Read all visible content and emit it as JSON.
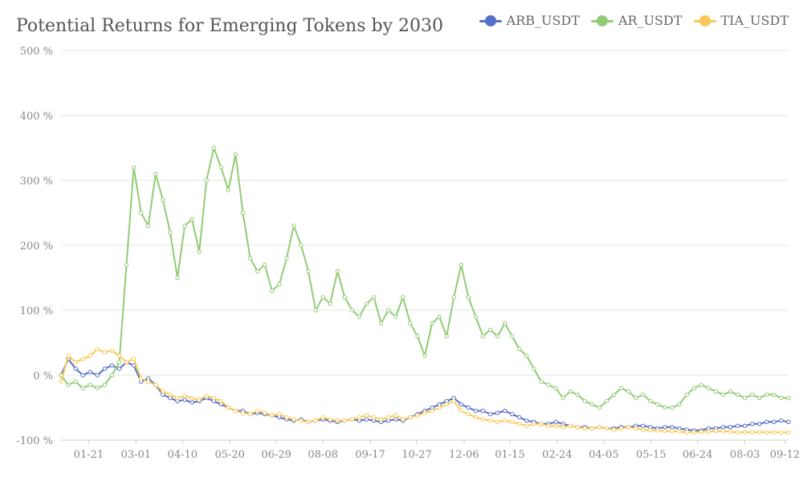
{
  "chart_data": {
    "type": "line",
    "title": "Potential Returns for Emerging Tokens by 2030",
    "xlabel": "",
    "ylabel": "",
    "ylim": [
      -100,
      500
    ],
    "y_ticks": [
      -100,
      0,
      100,
      200,
      300,
      400,
      500
    ],
    "y_tick_suffix": " %",
    "x_tick_labels": [
      "01-21",
      "03-01",
      "04-10",
      "05-20",
      "06-29",
      "08-08",
      "09-17",
      "10-27",
      "12-06",
      "01-15",
      "02-24",
      "04-05",
      "05-15",
      "06-24",
      "08-03",
      "09-12"
    ],
    "x_index_range": [
      0,
      100
    ],
    "x_tick_positions": [
      3.8,
      10.3,
      16.7,
      23.2,
      29.6,
      36.0,
      42.5,
      48.9,
      55.4,
      61.7,
      68.2,
      74.6,
      81.1,
      87.5,
      94.0,
      99.5
    ],
    "legend_position": "top-right",
    "grid": {
      "y": true,
      "x": false
    },
    "series": [
      {
        "name": "ARB_USDT",
        "color": "#5470c6",
        "x": [
          0,
          1,
          2,
          3,
          4,
          5,
          6,
          7,
          8,
          9,
          10,
          11,
          12,
          13,
          14,
          15,
          16,
          17,
          18,
          19,
          20,
          21,
          22,
          23,
          24,
          25,
          26,
          27,
          28,
          29,
          30,
          31,
          32,
          33,
          34,
          35,
          36,
          37,
          38,
          39,
          40,
          41,
          42,
          43,
          44,
          45,
          46,
          47,
          48,
          49,
          50,
          51,
          52,
          53,
          54,
          55,
          56,
          57,
          58,
          59,
          60,
          61,
          62,
          63,
          64,
          65,
          66,
          67,
          68,
          69,
          70,
          71,
          72,
          73,
          74,
          75,
          76,
          77,
          78,
          79,
          80,
          81,
          82,
          83,
          84,
          85,
          86,
          87,
          88,
          89,
          90,
          91,
          92,
          93,
          94,
          95,
          96,
          97,
          98,
          99,
          100
        ],
        "values": [
          0,
          25,
          10,
          0,
          5,
          0,
          10,
          15,
          10,
          20,
          15,
          -10,
          -5,
          -15,
          -30,
          -35,
          -40,
          -38,
          -42,
          -40,
          -35,
          -40,
          -45,
          -50,
          -55,
          -55,
          -60,
          -58,
          -60,
          -62,
          -65,
          -68,
          -70,
          -68,
          -72,
          -70,
          -68,
          -70,
          -72,
          -70,
          -68,
          -70,
          -68,
          -70,
          -72,
          -70,
          -68,
          -70,
          -65,
          -60,
          -55,
          -50,
          -45,
          -40,
          -35,
          -45,
          -50,
          -55,
          -55,
          -60,
          -58,
          -55,
          -60,
          -65,
          -70,
          -72,
          -75,
          -75,
          -72,
          -75,
          -78,
          -80,
          -80,
          -82,
          -80,
          -82,
          -82,
          -80,
          -80,
          -78,
          -78,
          -80,
          -82,
          -80,
          -80,
          -82,
          -84,
          -85,
          -85,
          -82,
          -82,
          -80,
          -80,
          -78,
          -78,
          -75,
          -75,
          -72,
          -72,
          -70,
          -72
        ]
      },
      {
        "name": "AR_USDT",
        "color": "#91cc75",
        "x": [
          0,
          1,
          2,
          3,
          4,
          5,
          6,
          7,
          8,
          9,
          10,
          11,
          12,
          13,
          14,
          15,
          16,
          17,
          18,
          19,
          20,
          21,
          22,
          23,
          24,
          25,
          26,
          27,
          28,
          29,
          30,
          31,
          32,
          33,
          34,
          35,
          36,
          37,
          38,
          39,
          40,
          41,
          42,
          43,
          44,
          45,
          46,
          47,
          48,
          49,
          50,
          51,
          52,
          53,
          54,
          55,
          56,
          57,
          58,
          59,
          60,
          61,
          62,
          63,
          64,
          65,
          66,
          67,
          68,
          69,
          70,
          71,
          72,
          73,
          74,
          75,
          76,
          77,
          78,
          79,
          80,
          81,
          82,
          83,
          84,
          85,
          86,
          87,
          88,
          89,
          90,
          91,
          92,
          93,
          94,
          95,
          96,
          97,
          98,
          99,
          100
        ],
        "values": [
          0,
          -15,
          -10,
          -20,
          -15,
          -20,
          -15,
          0,
          20,
          170,
          320,
          250,
          230,
          310,
          270,
          220,
          150,
          230,
          240,
          190,
          300,
          350,
          320,
          285,
          340,
          250,
          180,
          160,
          170,
          130,
          140,
          180,
          230,
          200,
          160,
          100,
          120,
          110,
          160,
          120,
          100,
          90,
          110,
          120,
          80,
          100,
          90,
          120,
          80,
          60,
          30,
          80,
          90,
          60,
          120,
          170,
          120,
          90,
          60,
          70,
          60,
          80,
          60,
          40,
          30,
          10,
          -10,
          -15,
          -20,
          -35,
          -25,
          -30,
          -40,
          -45,
          -50,
          -40,
          -30,
          -20,
          -25,
          -35,
          -30,
          -40,
          -45,
          -50,
          -50,
          -45,
          -30,
          -20,
          -15,
          -20,
          -25,
          -30,
          -25,
          -30,
          -35,
          -30,
          -35,
          -30,
          -30,
          -35,
          -35
        ]
      },
      {
        "name": "TIA_USDT",
        "color": "#fac858",
        "x": [
          0,
          1,
          2,
          3,
          4,
          5,
          6,
          7,
          8,
          9,
          10,
          11,
          12,
          13,
          14,
          15,
          16,
          17,
          18,
          19,
          20,
          21,
          22,
          23,
          24,
          25,
          26,
          27,
          28,
          29,
          30,
          31,
          32,
          33,
          34,
          35,
          36,
          37,
          38,
          39,
          40,
          41,
          42,
          43,
          44,
          45,
          46,
          47,
          48,
          49,
          50,
          51,
          52,
          53,
          54,
          55,
          56,
          57,
          58,
          59,
          60,
          61,
          62,
          63,
          64,
          65,
          66,
          67,
          68,
          69,
          70,
          71,
          72,
          73,
          74,
          75,
          76,
          77,
          78,
          79,
          80,
          81,
          82,
          83,
          84,
          85,
          86,
          87,
          88,
          89,
          90,
          91,
          92,
          93,
          94,
          95,
          96,
          97,
          98,
          99,
          100
        ],
        "values": [
          -10,
          30,
          20,
          25,
          30,
          40,
          35,
          38,
          30,
          20,
          25,
          -5,
          -10,
          -15,
          -25,
          -30,
          -35,
          -32,
          -35,
          -38,
          -32,
          -35,
          -40,
          -50,
          -55,
          -58,
          -60,
          -55,
          -58,
          -62,
          -60,
          -65,
          -68,
          -70,
          -72,
          -70,
          -65,
          -68,
          -70,
          -70,
          -68,
          -65,
          -62,
          -65,
          -68,
          -65,
          -62,
          -68,
          -65,
          -62,
          -58,
          -55,
          -50,
          -45,
          -40,
          -55,
          -60,
          -65,
          -68,
          -70,
          -72,
          -70,
          -72,
          -75,
          -78,
          -75,
          -75,
          -78,
          -78,
          -80,
          -78,
          -80,
          -82,
          -82,
          -80,
          -82,
          -84,
          -82,
          -80,
          -82,
          -84,
          -85,
          -85,
          -86,
          -86,
          -87,
          -88,
          -88,
          -87,
          -87,
          -86,
          -86,
          -87,
          -88,
          -88,
          -88,
          -88,
          -88,
          -88,
          -88,
          -88
        ]
      }
    ]
  }
}
